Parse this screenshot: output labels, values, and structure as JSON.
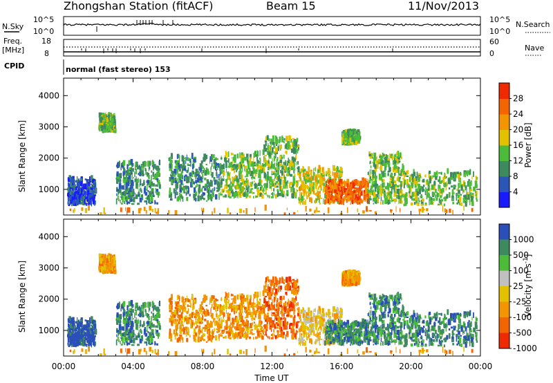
{
  "header": {
    "title": "Zhongshan Station (fitACF)",
    "beam": "Beam 15",
    "date": "11/Nov/2013"
  },
  "status_panels": {
    "nsky_label": "N.Sky",
    "nsky_ticks": [
      "10^5",
      "10^0"
    ],
    "nsearch_label": "N.Search",
    "nsearch_ticks": [
      "10^5",
      "10^0"
    ],
    "freq_label": "Freq.",
    "freq_unit": "[MHz]",
    "freq_ticks": [
      "18",
      "8"
    ],
    "nave_label": "Nave",
    "nave_ticks": [
      "60",
      "0"
    ],
    "cpid_label": "CPID",
    "cpid_text": "normal (fast stereo) 153"
  },
  "chart_data": [
    {
      "type": "heatmap",
      "title": "",
      "ylabel": "Slant Range [km]",
      "ylim": [
        180,
        4560
      ],
      "yticks": [
        "1000",
        "2000",
        "3000",
        "4000"
      ],
      "xlim_hours": [
        0,
        24
      ],
      "colorbar_label": "Power [dB]",
      "colorbar_ticks": [
        "4",
        "8",
        "12",
        "16",
        "20",
        "24",
        "28"
      ],
      "colorbar_range": [
        0,
        32
      ],
      "colors": [
        "#1a1aff",
        "#2a56b8",
        "#3d8a5e",
        "#4dbb3a",
        "#e3c000",
        "#f39500",
        "#f46400",
        "#f02a00"
      ],
      "echo_regions": [
        {
          "t": [
            0.2,
            1.8
          ],
          "r": [
            450,
            1300
          ],
          "level": 1
        },
        {
          "t": [
            2.0,
            2.9
          ],
          "r": [
            2800,
            3300
          ],
          "level": 3
        },
        {
          "t": [
            3.0,
            5.5
          ],
          "r": [
            500,
            1800
          ],
          "level": 2
        },
        {
          "t": [
            6.0,
            9.0
          ],
          "r": [
            600,
            2000
          ],
          "level": 2
        },
        {
          "t": [
            9.0,
            11.5
          ],
          "r": [
            700,
            2100
          ],
          "level": 3
        },
        {
          "t": [
            11.5,
            13.5
          ],
          "r": [
            700,
            2600
          ],
          "level": 3
        },
        {
          "t": [
            13.5,
            16.0
          ],
          "r": [
            500,
            1600
          ],
          "level": 4
        },
        {
          "t": [
            15.0,
            17.5
          ],
          "r": [
            500,
            1200
          ],
          "level": 6
        },
        {
          "t": [
            16.0,
            17.0
          ],
          "r": [
            2400,
            2800
          ],
          "level": 3
        },
        {
          "t": [
            17.5,
            19.5
          ],
          "r": [
            500,
            2100
          ],
          "level": 3
        },
        {
          "t": [
            19.5,
            23.8
          ],
          "r": [
            450,
            1500
          ],
          "level": 3
        },
        {
          "t": [
            0.0,
            24.0
          ],
          "r": [
            180,
            330
          ],
          "level": 5
        }
      ]
    },
    {
      "type": "heatmap",
      "title": "",
      "xlabel": "Time UT",
      "ylabel": "Slant Range [km]",
      "ylim": [
        180,
        4560
      ],
      "yticks": [
        "1000",
        "2000",
        "3000",
        "4000"
      ],
      "xticks": [
        "00:00",
        "04:00",
        "08:00",
        "12:00",
        "16:00",
        "20:00",
        "00:00"
      ],
      "xlim_hours": [
        0,
        24
      ],
      "colorbar_label": "Velocity [m s^-1]",
      "colorbar_ticks": [
        "1000",
        "500",
        "100",
        "25",
        "-25",
        "-100",
        "-500",
        "-1000"
      ],
      "colors": [
        "#2a4fb8",
        "#3d8a5e",
        "#4dbb3a",
        "#c0c0c0",
        "#e3c000",
        "#f39500",
        "#f46400",
        "#f02a00"
      ],
      "echo_regions": [
        {
          "t": [
            0.2,
            1.8
          ],
          "r": [
            450,
            1300
          ],
          "level": 0
        },
        {
          "t": [
            2.0,
            2.9
          ],
          "r": [
            2800,
            3300
          ],
          "level": 5
        },
        {
          "t": [
            3.0,
            5.5
          ],
          "r": [
            500,
            1800
          ],
          "level": 1
        },
        {
          "t": [
            6.0,
            9.0
          ],
          "r": [
            600,
            2000
          ],
          "level": 5
        },
        {
          "t": [
            9.0,
            11.5
          ],
          "r": [
            700,
            2100
          ],
          "level": 5
        },
        {
          "t": [
            11.5,
            13.5
          ],
          "r": [
            700,
            2600
          ],
          "level": 6
        },
        {
          "t": [
            13.5,
            16.0
          ],
          "r": [
            500,
            1600
          ],
          "level": 4
        },
        {
          "t": [
            15.0,
            17.5
          ],
          "r": [
            500,
            1200
          ],
          "level": 1
        },
        {
          "t": [
            16.0,
            17.0
          ],
          "r": [
            2400,
            2800
          ],
          "level": 5
        },
        {
          "t": [
            17.5,
            19.5
          ],
          "r": [
            500,
            2100
          ],
          "level": 1
        },
        {
          "t": [
            19.5,
            23.8
          ],
          "r": [
            450,
            1500
          ],
          "level": 1
        },
        {
          "t": [
            0.0,
            24.0
          ],
          "r": [
            180,
            330
          ],
          "level": 5
        }
      ]
    }
  ]
}
